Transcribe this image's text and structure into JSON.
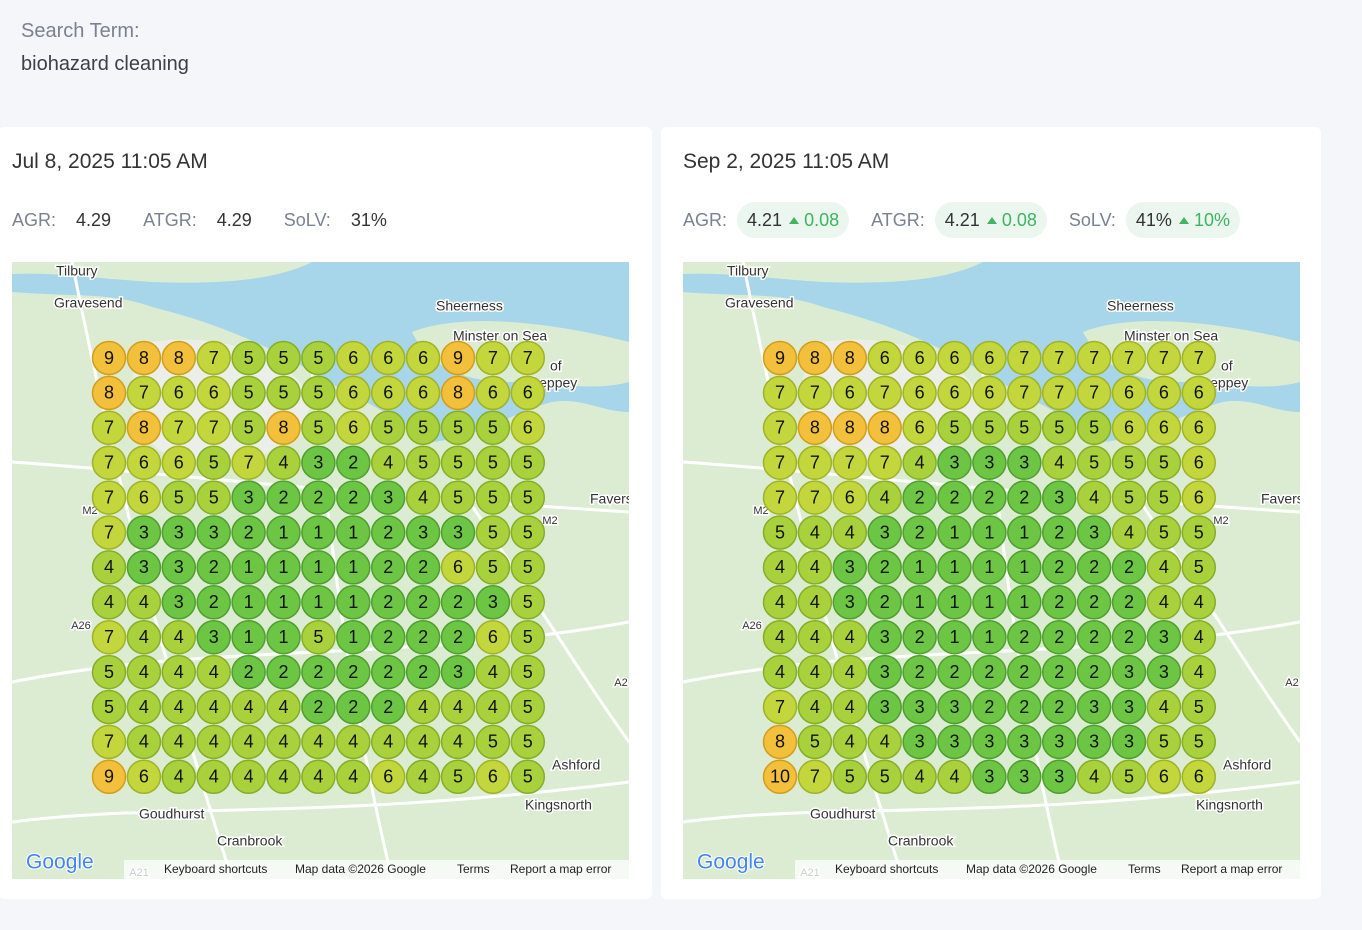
{
  "header": {
    "label": "Search Term:",
    "term": "biohazard cleaning"
  },
  "map": {
    "places": [
      "Tilbury",
      "Gravesend",
      "Sheerness",
      "Minster on Sea",
      "of",
      "Sheppey",
      "Faversham",
      "M2",
      "M2",
      "A26",
      "Goudhurst",
      "Cranbrook",
      "Kingsnorth",
      "Ashford",
      "A21",
      "A2"
    ],
    "attribution": {
      "logo": "Google",
      "shortcuts": "Keyboard shortcuts",
      "data": "Map data ©2026 Google",
      "terms": "Terms",
      "report": "Report a map error"
    }
  },
  "cards": [
    {
      "date": "Jul 8, 2025 11:05 AM",
      "metrics": [
        {
          "label": "AGR:",
          "value": "4.29"
        },
        {
          "label": "ATGR:",
          "value": "4.29"
        },
        {
          "label": "SoLV:",
          "value": "31%"
        }
      ],
      "grid": [
        [
          9,
          8,
          8,
          7,
          5,
          5,
          5,
          6,
          6,
          6,
          9,
          7,
          7
        ],
        [
          8,
          7,
          6,
          6,
          5,
          5,
          5,
          6,
          6,
          6,
          8,
          6,
          6
        ],
        [
          7,
          8,
          7,
          7,
          5,
          8,
          5,
          6,
          5,
          5,
          5,
          5,
          6
        ],
        [
          7,
          6,
          6,
          5,
          7,
          4,
          3,
          2,
          4,
          5,
          5,
          5,
          5
        ],
        [
          7,
          6,
          5,
          5,
          3,
          2,
          2,
          2,
          3,
          4,
          5,
          5,
          5
        ],
        [
          7,
          3,
          3,
          3,
          2,
          1,
          1,
          1,
          2,
          3,
          3,
          5,
          5
        ],
        [
          4,
          3,
          3,
          2,
          1,
          1,
          1,
          1,
          2,
          2,
          6,
          5,
          5
        ],
        [
          4,
          4,
          3,
          2,
          1,
          1,
          1,
          1,
          2,
          2,
          2,
          3,
          5
        ],
        [
          7,
          4,
          4,
          3,
          1,
          1,
          5,
          1,
          2,
          2,
          2,
          6,
          5
        ],
        [
          5,
          4,
          4,
          4,
          2,
          2,
          2,
          2,
          2,
          2,
          3,
          4,
          5
        ],
        [
          5,
          4,
          4,
          4,
          4,
          4,
          2,
          2,
          2,
          4,
          4,
          4,
          5
        ],
        [
          7,
          4,
          4,
          4,
          4,
          4,
          4,
          4,
          4,
          4,
          4,
          5,
          5
        ],
        [
          9,
          6,
          4,
          4,
          4,
          4,
          4,
          4,
          6,
          4,
          5,
          6,
          5
        ]
      ]
    },
    {
      "date": "Sep 2, 2025 11:05 AM",
      "metrics": [
        {
          "label": "AGR:",
          "value": "4.21",
          "delta": "0.08"
        },
        {
          "label": "ATGR:",
          "value": "4.21",
          "delta": "0.08"
        },
        {
          "label": "SoLV:",
          "value": "41%",
          "delta": "10%"
        }
      ],
      "grid": [
        [
          9,
          8,
          8,
          6,
          6,
          6,
          6,
          7,
          7,
          7,
          7,
          7,
          7
        ],
        [
          7,
          7,
          6,
          7,
          6,
          6,
          6,
          7,
          7,
          7,
          6,
          6,
          6
        ],
        [
          7,
          8,
          8,
          8,
          6,
          5,
          5,
          5,
          5,
          5,
          6,
          6,
          6
        ],
        [
          7,
          7,
          7,
          7,
          4,
          3,
          3,
          3,
          4,
          5,
          5,
          5,
          6
        ],
        [
          7,
          7,
          6,
          4,
          2,
          2,
          2,
          2,
          3,
          4,
          5,
          5,
          6
        ],
        [
          5,
          4,
          4,
          3,
          2,
          1,
          1,
          1,
          2,
          3,
          4,
          5,
          5
        ],
        [
          4,
          4,
          3,
          2,
          1,
          1,
          1,
          1,
          2,
          2,
          2,
          4,
          5
        ],
        [
          4,
          4,
          3,
          2,
          1,
          1,
          1,
          1,
          2,
          2,
          2,
          4,
          4
        ],
        [
          4,
          4,
          4,
          3,
          2,
          1,
          1,
          2,
          2,
          2,
          2,
          3,
          4
        ],
        [
          4,
          4,
          4,
          3,
          2,
          2,
          2,
          2,
          2,
          2,
          3,
          3,
          4
        ],
        [
          7,
          4,
          4,
          3,
          3,
          3,
          2,
          2,
          2,
          3,
          3,
          4,
          5
        ],
        [
          8,
          5,
          4,
          4,
          3,
          3,
          3,
          3,
          3,
          3,
          3,
          5,
          5
        ],
        [
          10,
          7,
          5,
          5,
          4,
          4,
          3,
          3,
          3,
          4,
          5,
          6,
          6
        ]
      ]
    }
  ]
}
